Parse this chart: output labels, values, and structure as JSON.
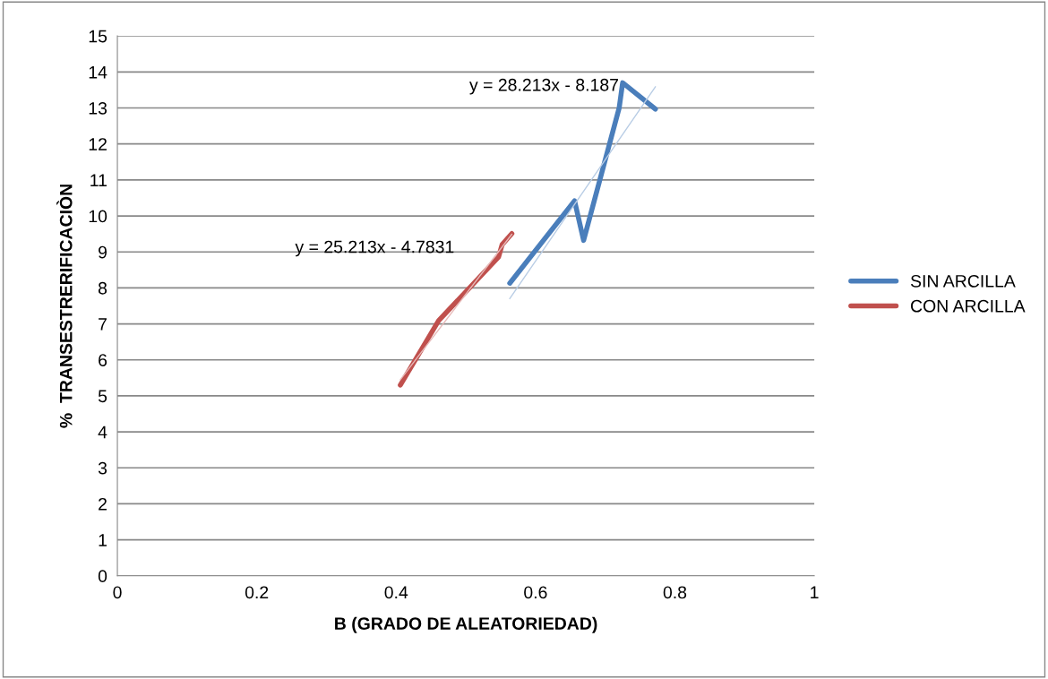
{
  "chart_data": {
    "type": "line",
    "xlabel": "B (GRADO DE ALEATORIEDAD)",
    "ylabel": "%  TRANSESTRERIFICACIÒN",
    "xlim": [
      0,
      1
    ],
    "xticks": [
      0,
      0.2,
      0.4,
      0.6,
      0.8,
      1
    ],
    "ylim": [
      0,
      15
    ],
    "yticks": [
      0,
      1,
      2,
      3,
      4,
      5,
      6,
      7,
      8,
      9,
      10,
      11,
      12,
      13,
      14,
      15
    ],
    "grid": "y",
    "legend": "right",
    "series": [
      {
        "name": "SIN ARCILLA",
        "color": "#4a7ebb",
        "x": [
          0.563,
          0.656,
          0.669,
          0.72,
          0.725,
          0.772
        ],
        "values": [
          8.13,
          10.42,
          9.32,
          13.0,
          13.7,
          12.97
        ]
      },
      {
        "name": "CON ARCILLA",
        "color": "#c0504d",
        "x": [
          0.406,
          0.461,
          0.547,
          0.552,
          0.566
        ],
        "values": [
          5.3,
          7.09,
          8.86,
          9.2,
          9.51
        ]
      },
      {
        "color": "#b9cde5",
        "x": [
          0.563,
          0.772
        ],
        "values": [
          7.7,
          13.59
        ]
      },
      {
        "color": "#e6b9b8",
        "x": [
          0.406,
          0.566
        ],
        "values": [
          5.45,
          9.49
        ]
      }
    ],
    "annotations": [
      "y = 28.213x - 8.187",
      "y = 25.213x - 4.7831"
    ]
  }
}
